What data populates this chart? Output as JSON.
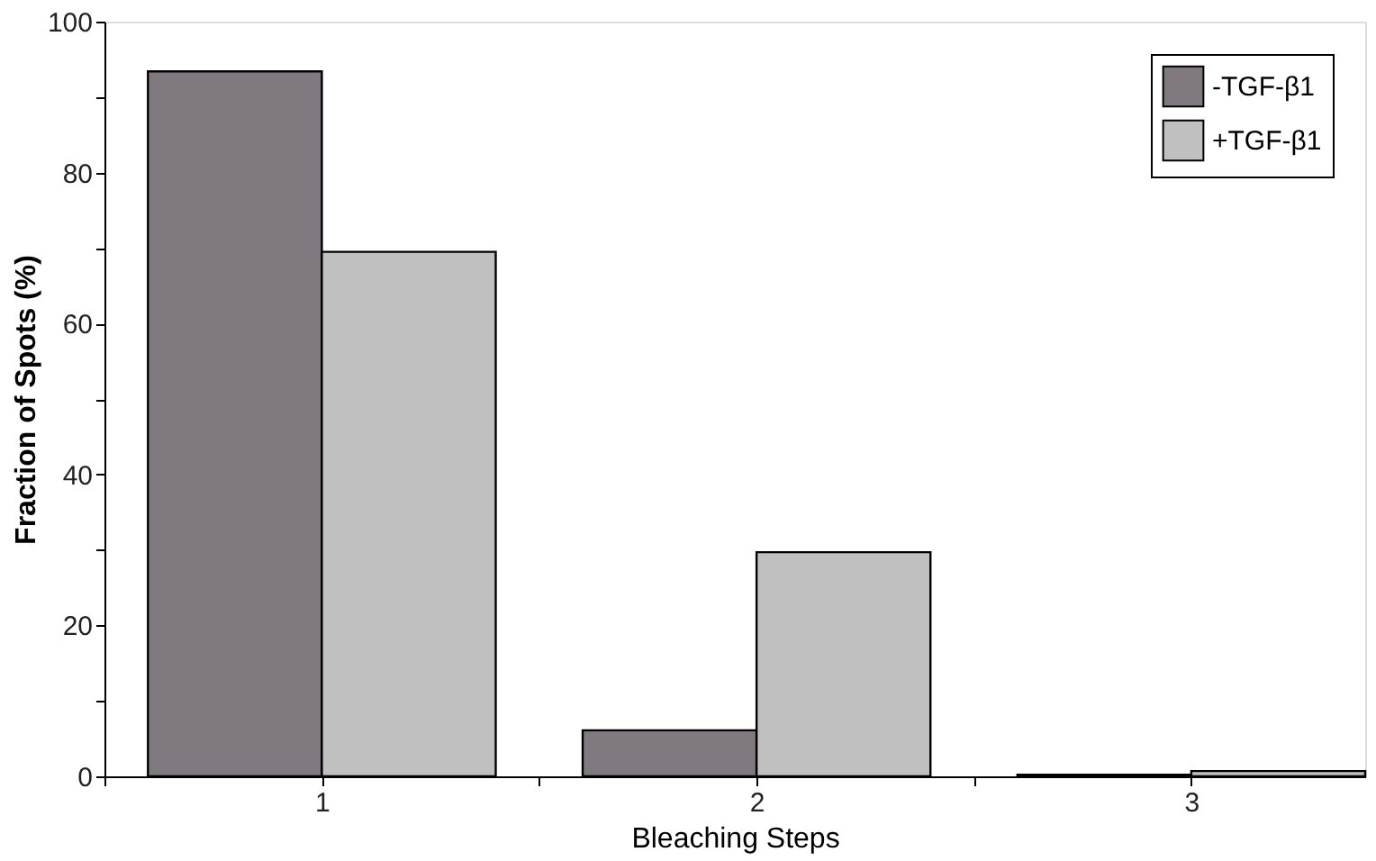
{
  "chart_data": {
    "type": "bar",
    "xlabel": "Bleaching Steps",
    "ylabel": "Fraction of Spots (%)",
    "x": [
      1,
      2,
      3
    ],
    "series": [
      {
        "name": "-TGF-β1",
        "color": "#807a80",
        "values": [
          93.4,
          6.1,
          0.2
        ]
      },
      {
        "name": "+TGF-β1",
        "color": "#c0c0c0",
        "values": [
          69.5,
          29.7,
          0.7
        ]
      }
    ],
    "xlim": [
      0.5,
      3.4
    ],
    "xticks": [
      {
        "value": 0.5,
        "label": null
      },
      1,
      {
        "value": 1.5,
        "label": null
      },
      2,
      {
        "value": 2.5,
        "label": null
      },
      3
    ],
    "ylim": [
      0,
      100
    ],
    "yticks": [
      0,
      {
        "value": 10,
        "label": null
      },
      20,
      {
        "value": 30,
        "label": null
      },
      40,
      {
        "value": 50,
        "label": null
      },
      60,
      {
        "value": 70,
        "label": null
      },
      80,
      {
        "value": 90,
        "label": null
      },
      100
    ],
    "grid": false,
    "legend": "top right"
  }
}
